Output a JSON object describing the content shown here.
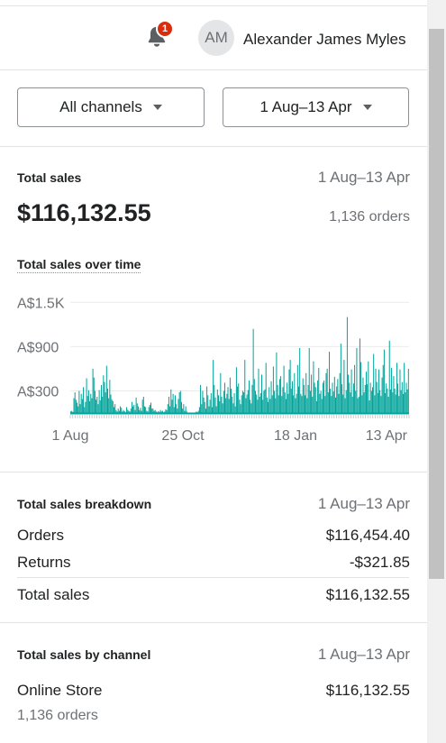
{
  "header": {
    "notification_count": "1",
    "avatar_initials": "AM",
    "user_name": "Alexander James Myles"
  },
  "filters": {
    "channel_label": "All channels",
    "date_label": "1 Aug–13 Apr"
  },
  "total_sales": {
    "title": "Total sales",
    "range": "1 Aug–13 Apr",
    "amount": "$116,132.55",
    "orders": "1,136 orders"
  },
  "chart": {
    "title": "Total sales over time",
    "color": "#00a39a"
  },
  "chart_data": {
    "type": "bar",
    "title": "Total sales over time",
    "xlabel": "",
    "ylabel": "",
    "y_ticks": [
      "A$300",
      "A$900",
      "A$1.5K"
    ],
    "y_tick_values": [
      300,
      900,
      1500
    ],
    "x_ticks": [
      "1 Aug",
      "25 Oct",
      "18 Jan",
      "13 Apr"
    ],
    "ylim": [
      0,
      1650
    ],
    "grid": true,
    "values": [
      20,
      30,
      15,
      200,
      280,
      180,
      140,
      90,
      300,
      120,
      260,
      190,
      350,
      80,
      150,
      470,
      230,
      310,
      160,
      260,
      200,
      600,
      480,
      300,
      180,
      220,
      120,
      310,
      170,
      380,
      220,
      510,
      420,
      280,
      640,
      330,
      200,
      450,
      250,
      180,
      160,
      80,
      120,
      40,
      20,
      60,
      30,
      90,
      70,
      20,
      40,
      25,
      10,
      80,
      45,
      30,
      20,
      60,
      150,
      90,
      110,
      40,
      210,
      130,
      90,
      40,
      70,
      30,
      180,
      220,
      90,
      80,
      30,
      20,
      80,
      110,
      140,
      60,
      60,
      30,
      40,
      20,
      10,
      25,
      15,
      40,
      20,
      30,
      10,
      20,
      50,
      40,
      120,
      220,
      90,
      320,
      180,
      260,
      80,
      240,
      120,
      60,
      190,
      280,
      300,
      150,
      60,
      120,
      30,
      90,
      20,
      0,
      0,
      0,
      0,
      0,
      0,
      0,
      0,
      20,
      10,
      30,
      80,
      380,
      120,
      300,
      210,
      150,
      60,
      360,
      240,
      90,
      180,
      270,
      80,
      720,
      380,
      210,
      90,
      320,
      240,
      160,
      540,
      220,
      130,
      300,
      410,
      200,
      260,
      350,
      190,
      480,
      330,
      220,
      130,
      270,
      90,
      620,
      360,
      400,
      180,
      120,
      240,
      300,
      280,
      720,
      200,
      250,
      310,
      440,
      180,
      130,
      380,
      1140,
      460,
      300,
      250,
      180,
      600,
      220,
      270,
      520,
      180,
      300,
      320,
      680,
      210,
      150,
      350,
      190,
      430,
      240,
      630,
      300,
      200,
      820,
      380,
      240,
      460,
      500,
      230,
      350,
      640,
      280,
      190,
      410,
      260,
      590,
      720,
      330,
      430,
      240,
      540,
      200,
      260,
      650,
      360,
      880,
      260,
      230,
      470,
      380,
      240,
      540,
      200,
      380,
      880,
      300,
      520,
      220,
      700,
      410,
      350,
      160,
      440,
      610,
      260,
      300,
      190,
      410,
      440,
      230,
      540,
      600,
      280,
      830,
      330,
      230,
      410,
      290,
      490,
      210,
      360,
      460,
      260,
      540,
      940,
      390,
      250,
      720,
      200,
      310,
      1300,
      520,
      410,
      280,
      590,
      220,
      400,
      650,
      300,
      880,
      200,
      220,
      1010,
      690,
      240,
      480,
      280,
      380,
      560,
      390,
      700,
      170,
      410,
      300,
      350,
      800,
      240,
      600,
      420,
      270,
      590,
      310,
      230,
      480,
      650,
      860,
      270,
      400,
      330,
      220,
      980,
      320,
      610,
      280,
      500,
      330,
      250,
      680,
      400,
      230,
      590,
      310,
      420,
      260,
      680,
      280,
      410,
      320,
      600
    ]
  },
  "breakdown": {
    "title": "Total sales breakdown",
    "range": "1 Aug–13 Apr",
    "orders_label": "Orders",
    "orders_value": "$116,454.40",
    "returns_label": "Returns",
    "returns_value": "-$321.85",
    "total_label": "Total sales",
    "total_value": "$116,132.55"
  },
  "by_channel": {
    "title": "Total sales by channel",
    "range": "1 Aug–13 Apr",
    "channel_name": "Online Store",
    "channel_value": "$116,132.55",
    "channel_orders": "1,136 orders"
  }
}
